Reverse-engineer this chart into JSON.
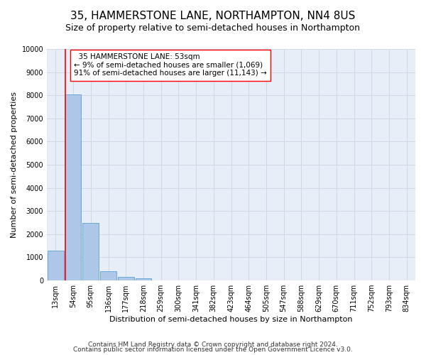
{
  "title": "35, HAMMERSTONE LANE, NORTHAMPTON, NN4 8US",
  "subtitle": "Size of property relative to semi-detached houses in Northampton",
  "xlabel": "Distribution of semi-detached houses by size in Northampton",
  "ylabel": "Number of semi-detached properties",
  "footer1": "Contains HM Land Registry data © Crown copyright and database right 2024.",
  "footer2": "Contains public sector information licensed under the Open Government Licence v3.0.",
  "bar_labels": [
    "13sqm",
    "54sqm",
    "95sqm",
    "136sqm",
    "177sqm",
    "218sqm",
    "259sqm",
    "300sqm",
    "341sqm",
    "382sqm",
    "423sqm",
    "464sqm",
    "505sqm",
    "547sqm",
    "588sqm",
    "629sqm",
    "670sqm",
    "711sqm",
    "752sqm",
    "793sqm",
    "834sqm"
  ],
  "bar_values": [
    1300,
    8050,
    2500,
    400,
    150,
    100,
    5,
    2,
    1,
    1,
    1,
    1,
    1,
    0,
    0,
    0,
    0,
    0,
    0,
    0,
    0
  ],
  "bar_color": "#aec6e8",
  "bar_edge_color": "#5a9fd4",
  "ylim": [
    0,
    10000
  ],
  "yticks": [
    0,
    1000,
    2000,
    3000,
    4000,
    5000,
    6000,
    7000,
    8000,
    9000,
    10000
  ],
  "property_label": "35 HAMMERSTONE LANE: 53sqm",
  "pct_smaller": 9,
  "n_smaller": 1069,
  "pct_larger": 91,
  "n_larger": 11143,
  "vline_x": 0.62,
  "grid_color": "#d0d8e8",
  "background_color": "#e8eef8",
  "title_fontsize": 11,
  "subtitle_fontsize": 9,
  "axis_label_fontsize": 8,
  "tick_fontsize": 7,
  "annotation_fontsize": 7.5,
  "footer_fontsize": 6.5
}
